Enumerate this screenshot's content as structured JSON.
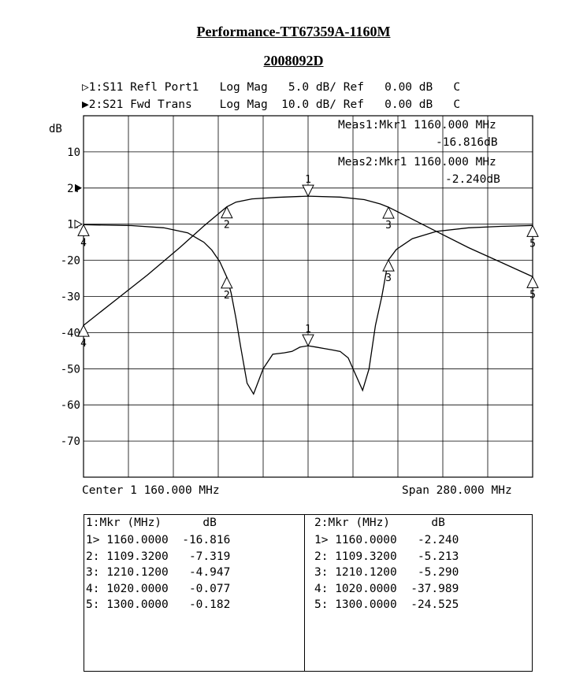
{
  "header": {
    "title": "Performance-TT67359A-1160M",
    "subtitle": "2008092D"
  },
  "traces": [
    {
      "marker": "▷",
      "label": "1:S11 Refl Port1   Log Mag   5.0 dB/ Ref   0.00 dB   C"
    },
    {
      "marker": "▶",
      "label": "2:S21 Fwd Trans    Log Mag  10.0 dB/ Ref   0.00 dB   C"
    }
  ],
  "meas": {
    "m1_line1": "Meas1:Mkr1 1160.000 MHz",
    "m1_line2": "-16.816dB",
    "m2_line1": "Meas2:Mkr1 1160.000 MHz",
    "m2_line2": "-2.240dB"
  },
  "footer": {
    "center": "Center 1 160.000 MHz",
    "span": "Span 280.000 MHz"
  },
  "chart_data": {
    "type": "line",
    "ylabel": "dB",
    "xlim": [
      1020,
      1300
    ],
    "x_unit": "MHz",
    "y_tick_labels": [
      "10",
      "2:",
      "1:",
      "-20",
      "-30",
      "-40",
      "-50",
      "-60",
      "-70"
    ],
    "grid": true,
    "series": [
      {
        "name": "1:S11 Refl Port1",
        "color": "#000000",
        "x": [
          1020,
          1050,
          1070,
          1085,
          1095,
          1100,
          1105,
          1109.32,
          1112,
          1115,
          1118,
          1122,
          1126,
          1132,
          1138,
          1145,
          1150,
          1155,
          1160,
          1165,
          1170,
          1175,
          1180,
          1185,
          1190,
          1194,
          1198,
          1202,
          1206,
          1210.12,
          1215,
          1225,
          1240,
          1260,
          1280,
          1300
        ],
        "y": [
          -0.077,
          -0.2,
          -0.5,
          -1.2,
          -2.5,
          -3.6,
          -5.2,
          -7.319,
          -9.5,
          -13,
          -17,
          -22,
          -23.5,
          -20,
          -18,
          -17.8,
          -17.6,
          -17,
          -16.816,
          -17,
          -17.2,
          -17.4,
          -17.6,
          -18.5,
          -21,
          -23,
          -20,
          -14,
          -10,
          -4.947,
          -3.5,
          -2.0,
          -1.0,
          -0.5,
          -0.3,
          -0.182
        ]
      },
      {
        "name": "2:S21 Fwd Trans",
        "color": "#000000",
        "x": [
          1020,
          1040,
          1060,
          1080,
          1095,
          1105,
          1109.32,
          1115,
          1125,
          1140,
          1160,
          1180,
          1195,
          1205,
          1210.12,
          1220,
          1240,
          1260,
          1280,
          1300
        ],
        "y": [
          -37.989,
          -31,
          -24,
          -16.5,
          -10.5,
          -6.8,
          -5.213,
          -3.9,
          -3.0,
          -2.6,
          -2.24,
          -2.5,
          -3.2,
          -4.4,
          -5.29,
          -7.5,
          -12,
          -16.5,
          -20.5,
          -24.525
        ]
      }
    ],
    "markers": {
      "s11": [
        {
          "n": "1",
          "x": 1160,
          "y": -16.816
        },
        {
          "n": "2",
          "x": 1109.32,
          "y": -7.319
        },
        {
          "n": "3",
          "x": 1210.12,
          "y": -4.947
        },
        {
          "n": "4",
          "x": 1020,
          "y": -0.077
        },
        {
          "n": "5",
          "x": 1300,
          "y": -0.182
        }
      ],
      "s21": [
        {
          "n": "1",
          "x": 1160,
          "y": -2.24
        },
        {
          "n": "2",
          "x": 1109.32,
          "y": -5.213
        },
        {
          "n": "3",
          "x": 1210.12,
          "y": -5.29
        },
        {
          "n": "4",
          "x": 1020,
          "y": -37.989
        },
        {
          "n": "5",
          "x": 1300,
          "y": -24.525
        }
      ]
    }
  },
  "table": {
    "left_header": "1:Mkr (MHz)      dB",
    "right_header": "2:Mkr (MHz)      dB",
    "left_rows": [
      "1> 1160.0000  -16.816",
      "2: 1109.3200   -7.319",
      "3: 1210.1200   -4.947",
      "4: 1020.0000   -0.077",
      "5: 1300.0000   -0.182"
    ],
    "right_rows": [
      "1> 1160.0000   -2.240",
      "2: 1109.3200   -5.213",
      "3: 1210.1200   -5.290",
      "4: 1020.0000  -37.989",
      "5: 1300.0000  -24.525"
    ]
  }
}
